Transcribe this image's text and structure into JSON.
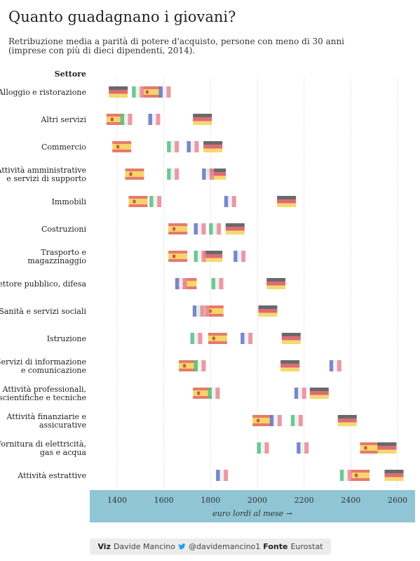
{
  "header": {
    "title": "Quanto guadagnano i giovani?",
    "subtitle_line1": "Retribuzione media a parità di potere d'acquisto, persone con meno di 30 anni",
    "subtitle_line2": "(imprese con più di dieci dipendenti, 2014)."
  },
  "colors": {
    "it_green": "#5dbf86",
    "it_red": "#e98a96",
    "fr_blue": "#6777c4",
    "fr_red": "#e98a96",
    "de_black": "#555555",
    "de_red": "#e0555d",
    "de_gold": "#f3d55b",
    "es_red": "#e2685a",
    "es_yellow": "#f6cf55",
    "axis_band": "#8fc5d5",
    "footer_bg": "#ececec"
  },
  "chart_data": {
    "type": "scatter",
    "title": "Quanto guadagnano i giovani?",
    "row_header": "Settore",
    "xlabel": "euro lordi al mese →",
    "xlim": [
      1290,
      2670
    ],
    "xticks": [
      1400,
      1600,
      1800,
      2000,
      2200,
      2400,
      2600
    ],
    "grid": true,
    "series": [
      "Italia",
      "Francia",
      "Germania",
      "Spagna"
    ],
    "rows": [
      {
        "label": [
          "Alloggio e ristorazione"
        ],
        "Italia": 1480,
        "Francia": 1595,
        "Germania": 1405,
        "Spagna": 1545
      },
      {
        "label": [
          "Altri servizi"
        ],
        "Italia": 1430,
        "Francia": 1550,
        "Germania": 1765,
        "Spagna": 1395
      },
      {
        "label": [
          "Commercio"
        ],
        "Italia": 1630,
        "Francia": 1715,
        "Germania": 1810,
        "Spagna": 1420
      },
      {
        "label": [
          "Attività amministrative",
          "e servizi di supporto"
        ],
        "Italia": 1630,
        "Francia": 1780,
        "Germania": 1825,
        "Spagna": 1475
      },
      {
        "label": [
          "Immobili"
        ],
        "Italia": 1555,
        "Francia": 1875,
        "Germania": 2125,
        "Spagna": 1490
      },
      {
        "label": [
          "Costruzioni"
        ],
        "Italia": 1810,
        "Francia": 1745,
        "Germania": 1905,
        "Spagna": 1660
      },
      {
        "label": [
          "Trasporto e",
          "magazzinaggio"
        ],
        "Italia": 1745,
        "Francia": 1915,
        "Germania": 1810,
        "Spagna": 1660
      },
      {
        "label": [
          "Settore pubblico, difesa"
        ],
        "Italia": 1820,
        "Francia": 1665,
        "Germania": 2080,
        "Spagna": 1700
      },
      {
        "label": [
          "Sanità e servizi sociali"
        ],
        "Italia": 1760,
        "Francia": 1740,
        "Germania": 2045,
        "Spagna": 1815
      },
      {
        "label": [
          "Istruzione"
        ],
        "Italia": 1730,
        "Francia": 1945,
        "Germania": 2145,
        "Spagna": 1830
      },
      {
        "label": [
          "Servizi di informazione",
          "e comunicazione"
        ],
        "Italia": 1745,
        "Francia": 2325,
        "Germania": 2140,
        "Spagna": 1705
      },
      {
        "label": [
          "Attività professionali,",
          "scientifiche e tecniche"
        ],
        "Italia": 1805,
        "Francia": 2175,
        "Germania": 2265,
        "Spagna": 1765
      },
      {
        "label": [
          "Attività finanziarie e",
          "assicurative"
        ],
        "Italia": 2160,
        "Francia": 2070,
        "Germania": 2385,
        "Spagna": 2020
      },
      {
        "label": [
          "Fornitura di elettricità,",
          "gas e acqua"
        ],
        "Italia": 2015,
        "Francia": 2185,
        "Germania": 2555,
        "Spagna": 2480
      },
      {
        "label": [
          "Attività estrattive"
        ],
        "Italia": 2370,
        "Francia": 1840,
        "Germania": 2585,
        "Spagna": 2440
      }
    ]
  },
  "footer": {
    "viz_label": "Viz",
    "author": "Davide Mancino",
    "handle": "@davidemancino1",
    "source_label": "Fonte",
    "source": "Eurostat"
  }
}
